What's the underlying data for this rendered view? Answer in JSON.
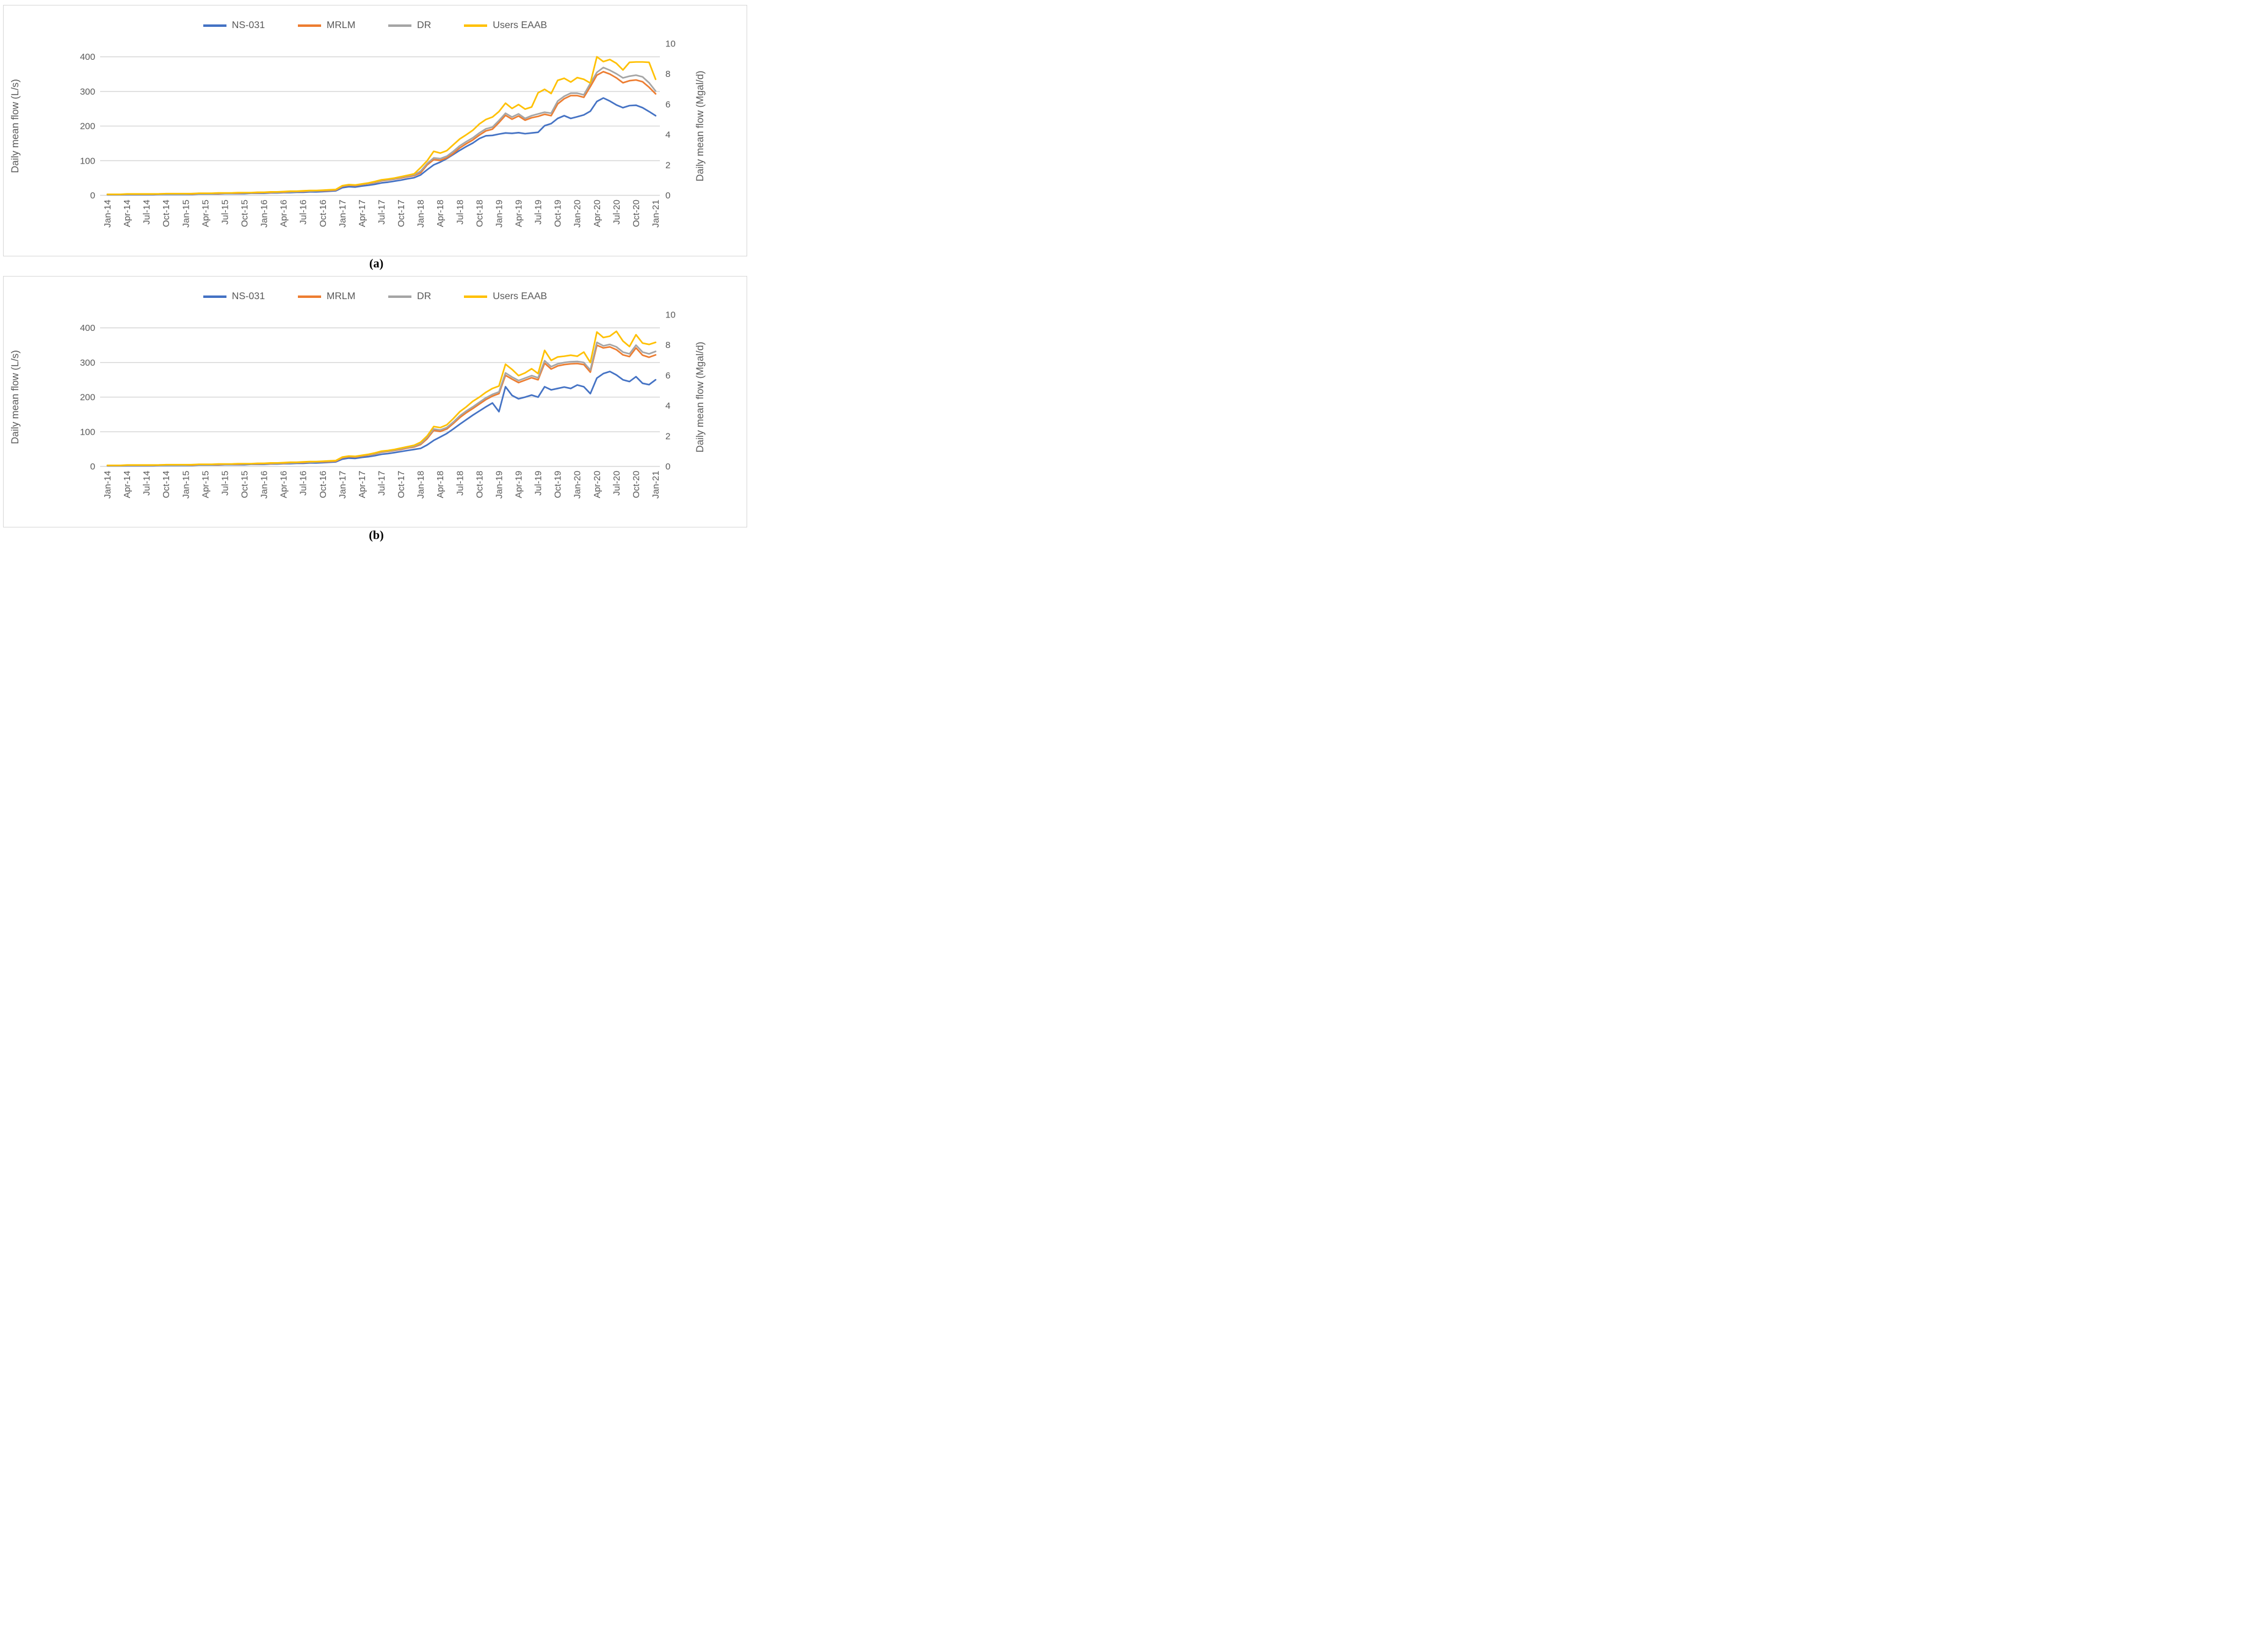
{
  "figure": {
    "background": "#FFFFFF",
    "panel_border_color": "#D9D9D9",
    "gridline_color": "#D9D9D9",
    "axis_text_color": "#595959",
    "captions": {
      "a": "(a)",
      "b": "(b)"
    }
  },
  "chart_data": [
    {
      "id": "a",
      "type": "line",
      "caption": "(a)",
      "title": "",
      "grid": true,
      "legend_position": "top",
      "left_axis": {
        "label": "Daily mean flow (L/s)",
        "ticks": [
          0,
          100,
          200,
          300,
          400
        ],
        "range": [
          0,
          400
        ]
      },
      "right_axis": {
        "label": "Daily mean flow (Mgal/d)",
        "ticks": [
          0,
          2,
          4,
          6,
          8,
          10
        ],
        "range": [
          0,
          10
        ]
      },
      "x_tick_labels": [
        "Jan-14",
        "Apr-14",
        "Jul-14",
        "Oct-14",
        "Jan-15",
        "Apr-15",
        "Jul-15",
        "Oct-15",
        "Jan-16",
        "Apr-16",
        "Jul-16",
        "Oct-16",
        "Jan-17",
        "Apr-17",
        "Jul-17",
        "Oct-17",
        "Jan-18",
        "Apr-18",
        "Jul-18",
        "Oct-18",
        "Jan-19",
        "Apr-19",
        "Jul-19",
        "Oct-19",
        "Jan-20",
        "Apr-20",
        "Jul-20",
        "Oct-20",
        "Jan-21"
      ],
      "series": [
        {
          "name": "NS-031",
          "color": "#4472C4",
          "values": [
            2,
            2,
            2,
            2,
            2,
            2,
            2,
            2,
            3,
            3,
            3,
            3,
            3,
            3,
            4,
            4,
            4,
            4,
            5,
            5,
            5,
            5,
            6,
            6,
            6,
            7,
            7,
            8,
            8,
            9,
            9,
            10,
            10,
            11,
            12,
            13,
            22,
            25,
            24,
            27,
            29,
            32,
            36,
            38,
            41,
            44,
            48,
            51,
            59,
            74,
            88,
            96,
            106,
            118,
            130,
            141,
            151,
            164,
            172,
            173,
            177,
            180,
            179,
            181,
            178,
            180,
            182,
            201,
            207,
            222,
            230,
            222,
            227,
            232,
            243,
            271,
            281,
            272,
            261,
            253,
            259,
            260,
            253,
            242,
            230
          ]
        },
        {
          "name": "MRLM",
          "color": "#ED7D31",
          "values": [
            3,
            3,
            3,
            3,
            3,
            3,
            3,
            3,
            4,
            4,
            4,
            4,
            4,
            4,
            5,
            5,
            5,
            5,
            6,
            6,
            6,
            7,
            7,
            7,
            8,
            8,
            9,
            9,
            10,
            11,
            11,
            12,
            13,
            13,
            14,
            15,
            26,
            29,
            28,
            31,
            34,
            37,
            42,
            44,
            47,
            50,
            54,
            57,
            65,
            88,
            103,
            101,
            108,
            121,
            137,
            149,
            160,
            174,
            186,
            191,
            210,
            231,
            220,
            229,
            217,
            224,
            228,
            234,
            230,
            264,
            279,
            288,
            288,
            283,
            314,
            347,
            357,
            350,
            339,
            325,
            331,
            333,
            328,
            312,
            293
          ]
        },
        {
          "name": "DR",
          "color": "#A5A5A5",
          "values": [
            3,
            3,
            3,
            3,
            3,
            3,
            3,
            3,
            4,
            4,
            4,
            4,
            4,
            5,
            5,
            5,
            5,
            6,
            6,
            6,
            7,
            7,
            7,
            8,
            8,
            9,
            9,
            10,
            10,
            11,
            12,
            12,
            13,
            14,
            15,
            16,
            27,
            30,
            29,
            32,
            35,
            38,
            43,
            45,
            48,
            52,
            56,
            59,
            70,
            92,
            108,
            106,
            113,
            127,
            143,
            155,
            166,
            180,
            192,
            197,
            216,
            237,
            226,
            235,
            222,
            230,
            235,
            240,
            237,
            272,
            286,
            295,
            295,
            290,
            323,
            355,
            369,
            361,
            351,
            339,
            344,
            347,
            342,
            325,
            301
          ]
        },
        {
          "name": "Users EAAB",
          "color": "#FFC000",
          "values": [
            3,
            3,
            3,
            4,
            4,
            4,
            4,
            4,
            4,
            5,
            5,
            5,
            5,
            5,
            6,
            6,
            6,
            7,
            7,
            7,
            8,
            8,
            8,
            9,
            9,
            10,
            10,
            11,
            12,
            12,
            13,
            14,
            14,
            15,
            16,
            17,
            28,
            31,
            30,
            33,
            36,
            40,
            45,
            47,
            50,
            54,
            58,
            62,
            80,
            100,
            127,
            122,
            129,
            146,
            163,
            175,
            188,
            206,
            219,
            226,
            242,
            266,
            251,
            262,
            249,
            255,
            296,
            306,
            294,
            332,
            338,
            327,
            340,
            335,
            324,
            400,
            386,
            392,
            381,
            362,
            384,
            385,
            385,
            384,
            335
          ]
        }
      ]
    },
    {
      "id": "b",
      "type": "line",
      "caption": "(b)",
      "title": "",
      "grid": true,
      "legend_position": "top",
      "left_axis": {
        "label": "Daily mean flow (L/s)",
        "ticks": [
          0,
          100,
          200,
          300,
          400
        ],
        "range": [
          0,
          400
        ]
      },
      "right_axis": {
        "label": "Daily mean flow (Mgal/d)",
        "ticks": [
          0,
          2,
          4,
          6,
          8,
          10
        ],
        "range": [
          0,
          10
        ]
      },
      "x_tick_labels": [
        "Jan-14",
        "Apr-14",
        "Jul-14",
        "Oct-14",
        "Jan-15",
        "Apr-15",
        "Jul-15",
        "Oct-15",
        "Jan-16",
        "Apr-16",
        "Jul-16",
        "Oct-16",
        "Jan-17",
        "Apr-17",
        "Jul-17",
        "Oct-17",
        "Jan-18",
        "Apr-18",
        "Jul-18",
        "Oct-18",
        "Jan-19",
        "Apr-19",
        "Jul-19",
        "Oct-19",
        "Jan-20",
        "Apr-20",
        "Jul-20",
        "Oct-20",
        "Jan-21"
      ],
      "series": [
        {
          "name": "NS-031",
          "color": "#4472C4",
          "values": [
            2,
            2,
            2,
            2,
            2,
            2,
            2,
            2,
            3,
            3,
            3,
            3,
            3,
            3,
            4,
            4,
            4,
            4,
            5,
            5,
            5,
            5,
            6,
            6,
            6,
            7,
            7,
            8,
            8,
            9,
            9,
            10,
            10,
            11,
            12,
            13,
            21,
            24,
            23,
            26,
            28,
            31,
            35,
            37,
            40,
            43,
            46,
            49,
            52,
            62,
            75,
            85,
            95,
            108,
            122,
            135,
            148,
            160,
            172,
            183,
            158,
            230,
            205,
            195,
            200,
            206,
            200,
            230,
            221,
            225,
            229,
            225,
            235,
            230,
            210,
            255,
            268,
            274,
            264,
            250,
            245,
            259,
            240,
            236,
            250
          ]
        },
        {
          "name": "MRLM",
          "color": "#ED7D31",
          "values": [
            3,
            3,
            3,
            3,
            3,
            3,
            3,
            3,
            4,
            4,
            4,
            4,
            4,
            4,
            5,
            5,
            5,
            5,
            6,
            6,
            6,
            7,
            7,
            7,
            8,
            8,
            9,
            9,
            10,
            11,
            11,
            12,
            13,
            13,
            14,
            15,
            25,
            28,
            27,
            30,
            33,
            36,
            41,
            43,
            46,
            49,
            53,
            56,
            63,
            80,
            104,
            101,
            108,
            124,
            141,
            155,
            167,
            180,
            193,
            203,
            210,
            263,
            252,
            242,
            249,
            256,
            250,
            298,
            281,
            290,
            294,
            296,
            297,
            294,
            272,
            350,
            342,
            345,
            337,
            322,
            317,
            342,
            321,
            315,
            322
          ]
        },
        {
          "name": "DR",
          "color": "#A5A5A5",
          "values": [
            3,
            3,
            3,
            3,
            3,
            3,
            3,
            3,
            4,
            4,
            4,
            4,
            4,
            5,
            5,
            5,
            5,
            6,
            6,
            6,
            7,
            7,
            7,
            8,
            8,
            9,
            9,
            10,
            10,
            11,
            12,
            12,
            13,
            14,
            15,
            16,
            26,
            29,
            28,
            31,
            34,
            37,
            42,
            44,
            47,
            51,
            55,
            58,
            66,
            84,
            108,
            105,
            112,
            128,
            146,
            160,
            172,
            185,
            198,
            208,
            215,
            270,
            258,
            248,
            255,
            262,
            256,
            305,
            288,
            296,
            300,
            302,
            303,
            300,
            278,
            358,
            348,
            352,
            345,
            330,
            325,
            350,
            330,
            325,
            332
          ]
        },
        {
          "name": "Users EAAB",
          "color": "#FFC000",
          "values": [
            3,
            3,
            3,
            4,
            4,
            4,
            4,
            4,
            4,
            5,
            5,
            5,
            5,
            5,
            6,
            6,
            6,
            7,
            7,
            7,
            8,
            8,
            8,
            9,
            9,
            10,
            10,
            11,
            12,
            12,
            13,
            14,
            14,
            15,
            16,
            17,
            27,
            30,
            29,
            32,
            35,
            39,
            44,
            46,
            49,
            53,
            57,
            61,
            70,
            88,
            115,
            112,
            120,
            138,
            158,
            172,
            188,
            200,
            214,
            225,
            232,
            295,
            280,
            262,
            270,
            282,
            268,
            335,
            306,
            316,
            318,
            321,
            318,
            330,
            300,
            388,
            372,
            376,
            390,
            362,
            346,
            380,
            356,
            352,
            358
          ]
        }
      ]
    }
  ]
}
